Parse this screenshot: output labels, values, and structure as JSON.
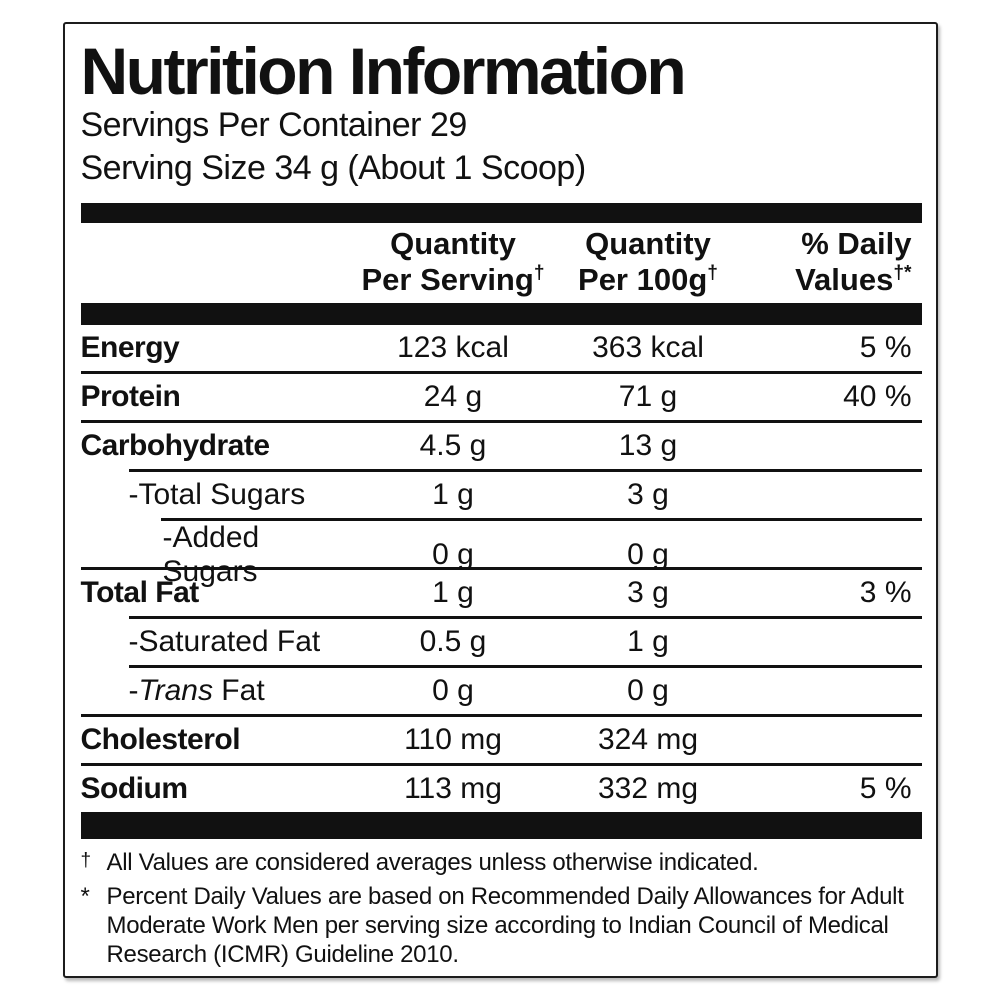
{
  "header": {
    "title": "Nutrition Information",
    "servings_per_container": "Servings Per Container 29",
    "serving_size": "Serving Size 34 g (About 1 Scoop)"
  },
  "table": {
    "columns": {
      "per_serving_line1": "Quantity",
      "per_serving_line2": "Per Serving",
      "per_serving_mark": "†",
      "per_100g_line1": "Quantity",
      "per_100g_line2": "Per 100g",
      "per_100g_mark": "†",
      "daily_line1": "% Daily",
      "daily_line2": "Values",
      "daily_mark": "†*"
    },
    "rows": [
      {
        "name": "Energy",
        "per_serving": "123 kcal",
        "per_100g": "363 kcal",
        "daily_value": "5 %"
      },
      {
        "name": "Protein",
        "per_serving": "24 g",
        "per_100g": "71 g",
        "daily_value": "40 %"
      },
      {
        "name": "Carbohydrate",
        "per_serving": "4.5 g",
        "per_100g": "13 g",
        "daily_value": ""
      },
      {
        "name": "-Total Sugars",
        "per_serving": "1 g",
        "per_100g": "3 g",
        "daily_value": ""
      },
      {
        "name": "-Added Sugars",
        "per_serving": "0 g",
        "per_100g": "0 g",
        "daily_value": ""
      },
      {
        "name": "Total Fat",
        "per_serving": "1 g",
        "per_100g": "3 g",
        "daily_value": "3 %"
      },
      {
        "name": "-Saturated Fat",
        "per_serving": "0.5 g",
        "per_100g": "1 g",
        "daily_value": ""
      },
      {
        "name_prefix": "-",
        "name_italic": "Trans",
        "name_suffix": " Fat",
        "per_serving": "0 g",
        "per_100g": "0 g",
        "daily_value": ""
      },
      {
        "name": "Cholesterol",
        "per_serving": "110 mg",
        "per_100g": "324 mg",
        "daily_value": ""
      },
      {
        "name": "Sodium",
        "per_serving": "113 mg",
        "per_100g": "332 mg",
        "daily_value": "5 %"
      }
    ]
  },
  "footnotes": {
    "dagger_mark": "†",
    "dagger_text": "All Values are considered averages unless otherwise indicated.",
    "asterisk_mark": "*",
    "asterisk_text": "Percent Daily Values are based on Recommended Daily Allowances for Adult Moderate Work Men per serving size according to Indian Council of Medical Research (ICMR) Guideline 2010."
  },
  "colors": {
    "text": "#111111",
    "bar": "#111111",
    "border": "#1c1c1c",
    "background": "#ffffff"
  }
}
